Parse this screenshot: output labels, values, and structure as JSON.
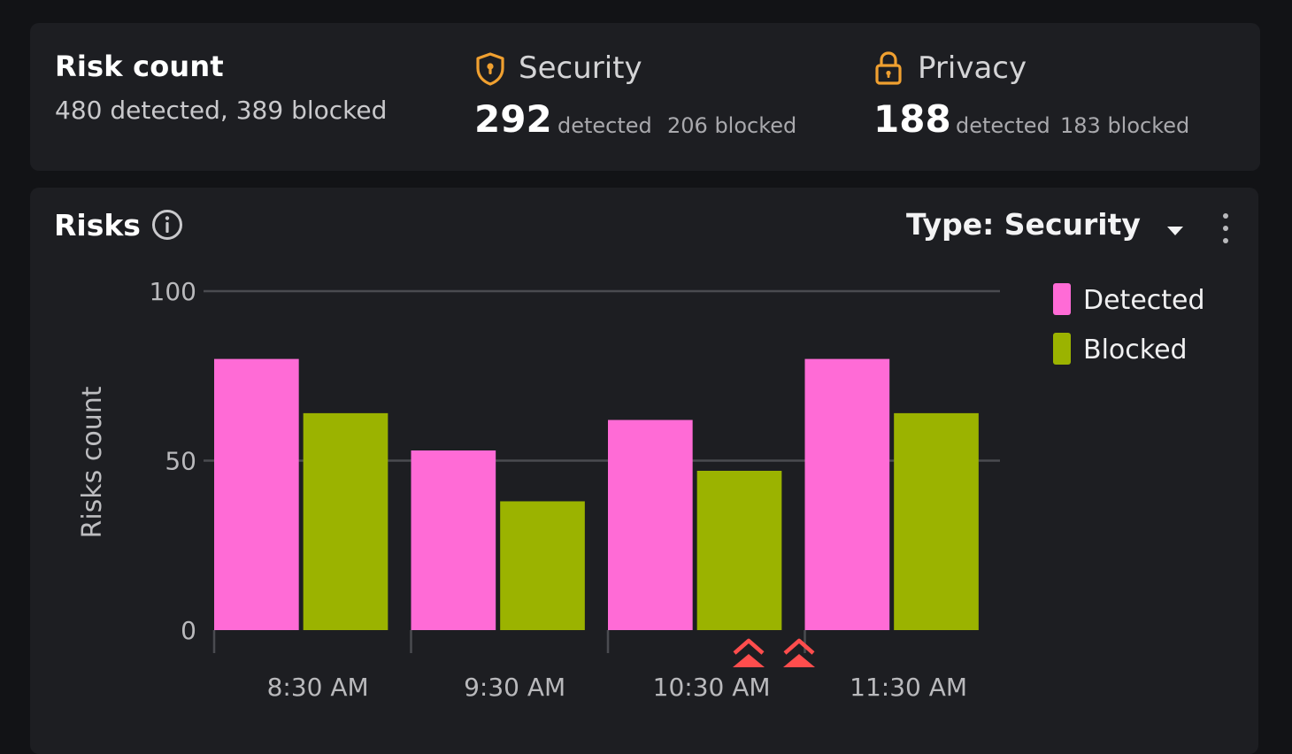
{
  "summary": {
    "title": "Risk count",
    "subtitle": "480 detected, 389 blocked",
    "categories": [
      {
        "label": "Security",
        "icon": "shield-icon",
        "detected_num": "292",
        "detected_word": "detected",
        "blocked_text": "206 blocked",
        "icon_color": "#f0a030"
      },
      {
        "label": "Privacy",
        "icon": "lock-icon",
        "detected_num": "188",
        "detected_word": "detected",
        "blocked_text": "183 blocked",
        "icon_color": "#f0a030"
      }
    ]
  },
  "risks_panel": {
    "title": "Risks",
    "info_icon": "info-icon",
    "type_select_label": "Type: Security",
    "menu_icon": "more-vertical-icon"
  },
  "chart_data": {
    "type": "bar",
    "categories": [
      "8:30 AM",
      "9:30 AM",
      "10:30 AM",
      "11:30 AM"
    ],
    "series": [
      {
        "name": "Detected",
        "color": "#ff6bd6",
        "values": [
          80,
          53,
          62,
          80
        ]
      },
      {
        "name": "Blocked",
        "color": "#9bb300",
        "values": [
          64,
          38,
          47,
          64
        ]
      }
    ],
    "ylabel": "Risks count",
    "ylim": [
      0,
      100
    ],
    "yticks": [
      0,
      50,
      100
    ],
    "grid": true,
    "legend_position": "right",
    "annotations": [
      {
        "icon": "double-chevron-up-icon",
        "color": "#ff4d4d"
      },
      {
        "icon": "double-chevron-up-icon",
        "color": "#ff4d4d"
      }
    ]
  }
}
